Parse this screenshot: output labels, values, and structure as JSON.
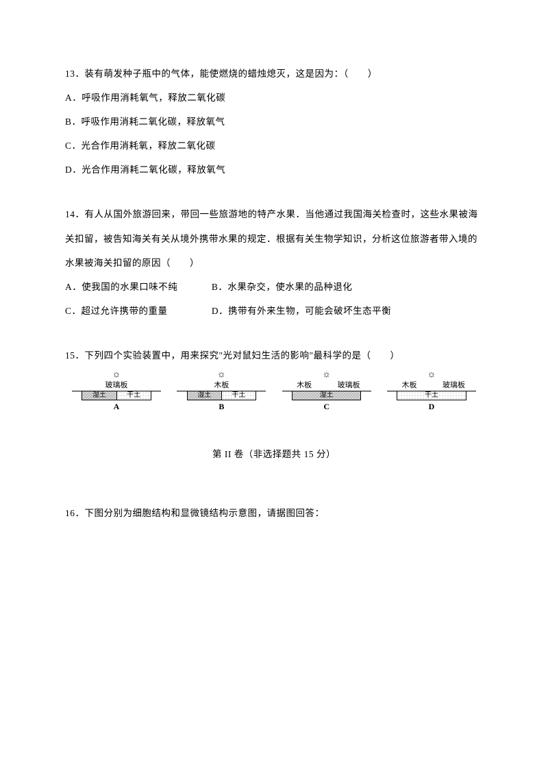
{
  "q13": {
    "stem": "13．装有萌发种子瓶中的气体，能使燃烧的蜡烛熄灭，这是因为：（　　）",
    "a": "A．呼吸作用消耗氧气，释放二氧化碳",
    "b": "B．呼吸作用消耗二氧化碳，释放氧气",
    "c": "C．光合作用消耗氧，释放二氧化碳",
    "d": "D．光合作用消耗二氧化碳，释放氧气"
  },
  "q14": {
    "stem": "14．有人从国外旅游回来，带回一些旅游地的特产水果．当他通过我国海关检查时，这些水果被海关扣留，被告知海关有关从境外携带水果的规定．根据有关生物学知识，分析这位旅游者带入境的水果被海关扣留的原因（　　）",
    "a": "A．使我国的水果口味不纯",
    "b": "B．水果杂交，使水果的品种退化",
    "c": "C．超过允许携带的重量",
    "d": "D．携带有外来生物，可能会破坏生态平衡"
  },
  "q15": {
    "stem": "15．下列四个实验装置中，用来探究\"光对鼠妇生活的影响\"最科学的是（　　）",
    "diagrams": {
      "sun_glyph": "☼",
      "A": {
        "cover_left": "",
        "cover_right": "玻璃板",
        "soil_left": "湿土",
        "soil_right": "干土",
        "label": "A",
        "split_cover": false,
        "single_cover": "玻璃板"
      },
      "B": {
        "cover": "木板",
        "soil_left": "湿土",
        "soil_right": "干土",
        "label": "B"
      },
      "C": {
        "cover_left": "木板",
        "cover_right": "玻璃板",
        "soil": "湿土",
        "label": "C"
      },
      "D": {
        "cover_left": "木板",
        "cover_right": "玻璃板",
        "soil": "干土",
        "label": "D"
      }
    }
  },
  "section2": {
    "title": "第 II 卷（非选择题共 15 分）"
  },
  "q16": {
    "stem": "16．下图分别为细胞结构和显微镜结构示意图，请据图回答："
  }
}
